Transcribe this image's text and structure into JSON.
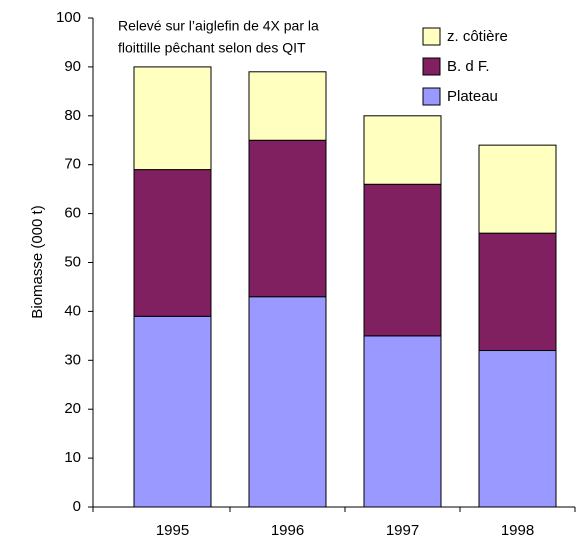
{
  "chart_data": {
    "type": "stacked_bar",
    "ylabel": "Biomasse     (000 t)",
    "annotation": [
      "Relevé sur l’aiglefin de 4X par la",
      "floittille pêchant selon des QIT"
    ],
    "categories": [
      "1995",
      "1996",
      "1997",
      "1998"
    ],
    "series": [
      {
        "name": "Plateau",
        "color": "#9999ff",
        "values": [
          39,
          43,
          35,
          32
        ]
      },
      {
        "name": "B. d F.",
        "color": "#802060",
        "values": [
          30,
          32,
          31,
          24
        ]
      },
      {
        "name": "z. côtière",
        "color": "#ffffc0",
        "values": [
          21,
          14,
          14,
          18
        ]
      }
    ],
    "ylim": [
      0,
      100
    ],
    "yticks": [
      0,
      10,
      20,
      30,
      40,
      50,
      60,
      70,
      80,
      90,
      100
    ],
    "grid": false,
    "legend": "upper right"
  }
}
